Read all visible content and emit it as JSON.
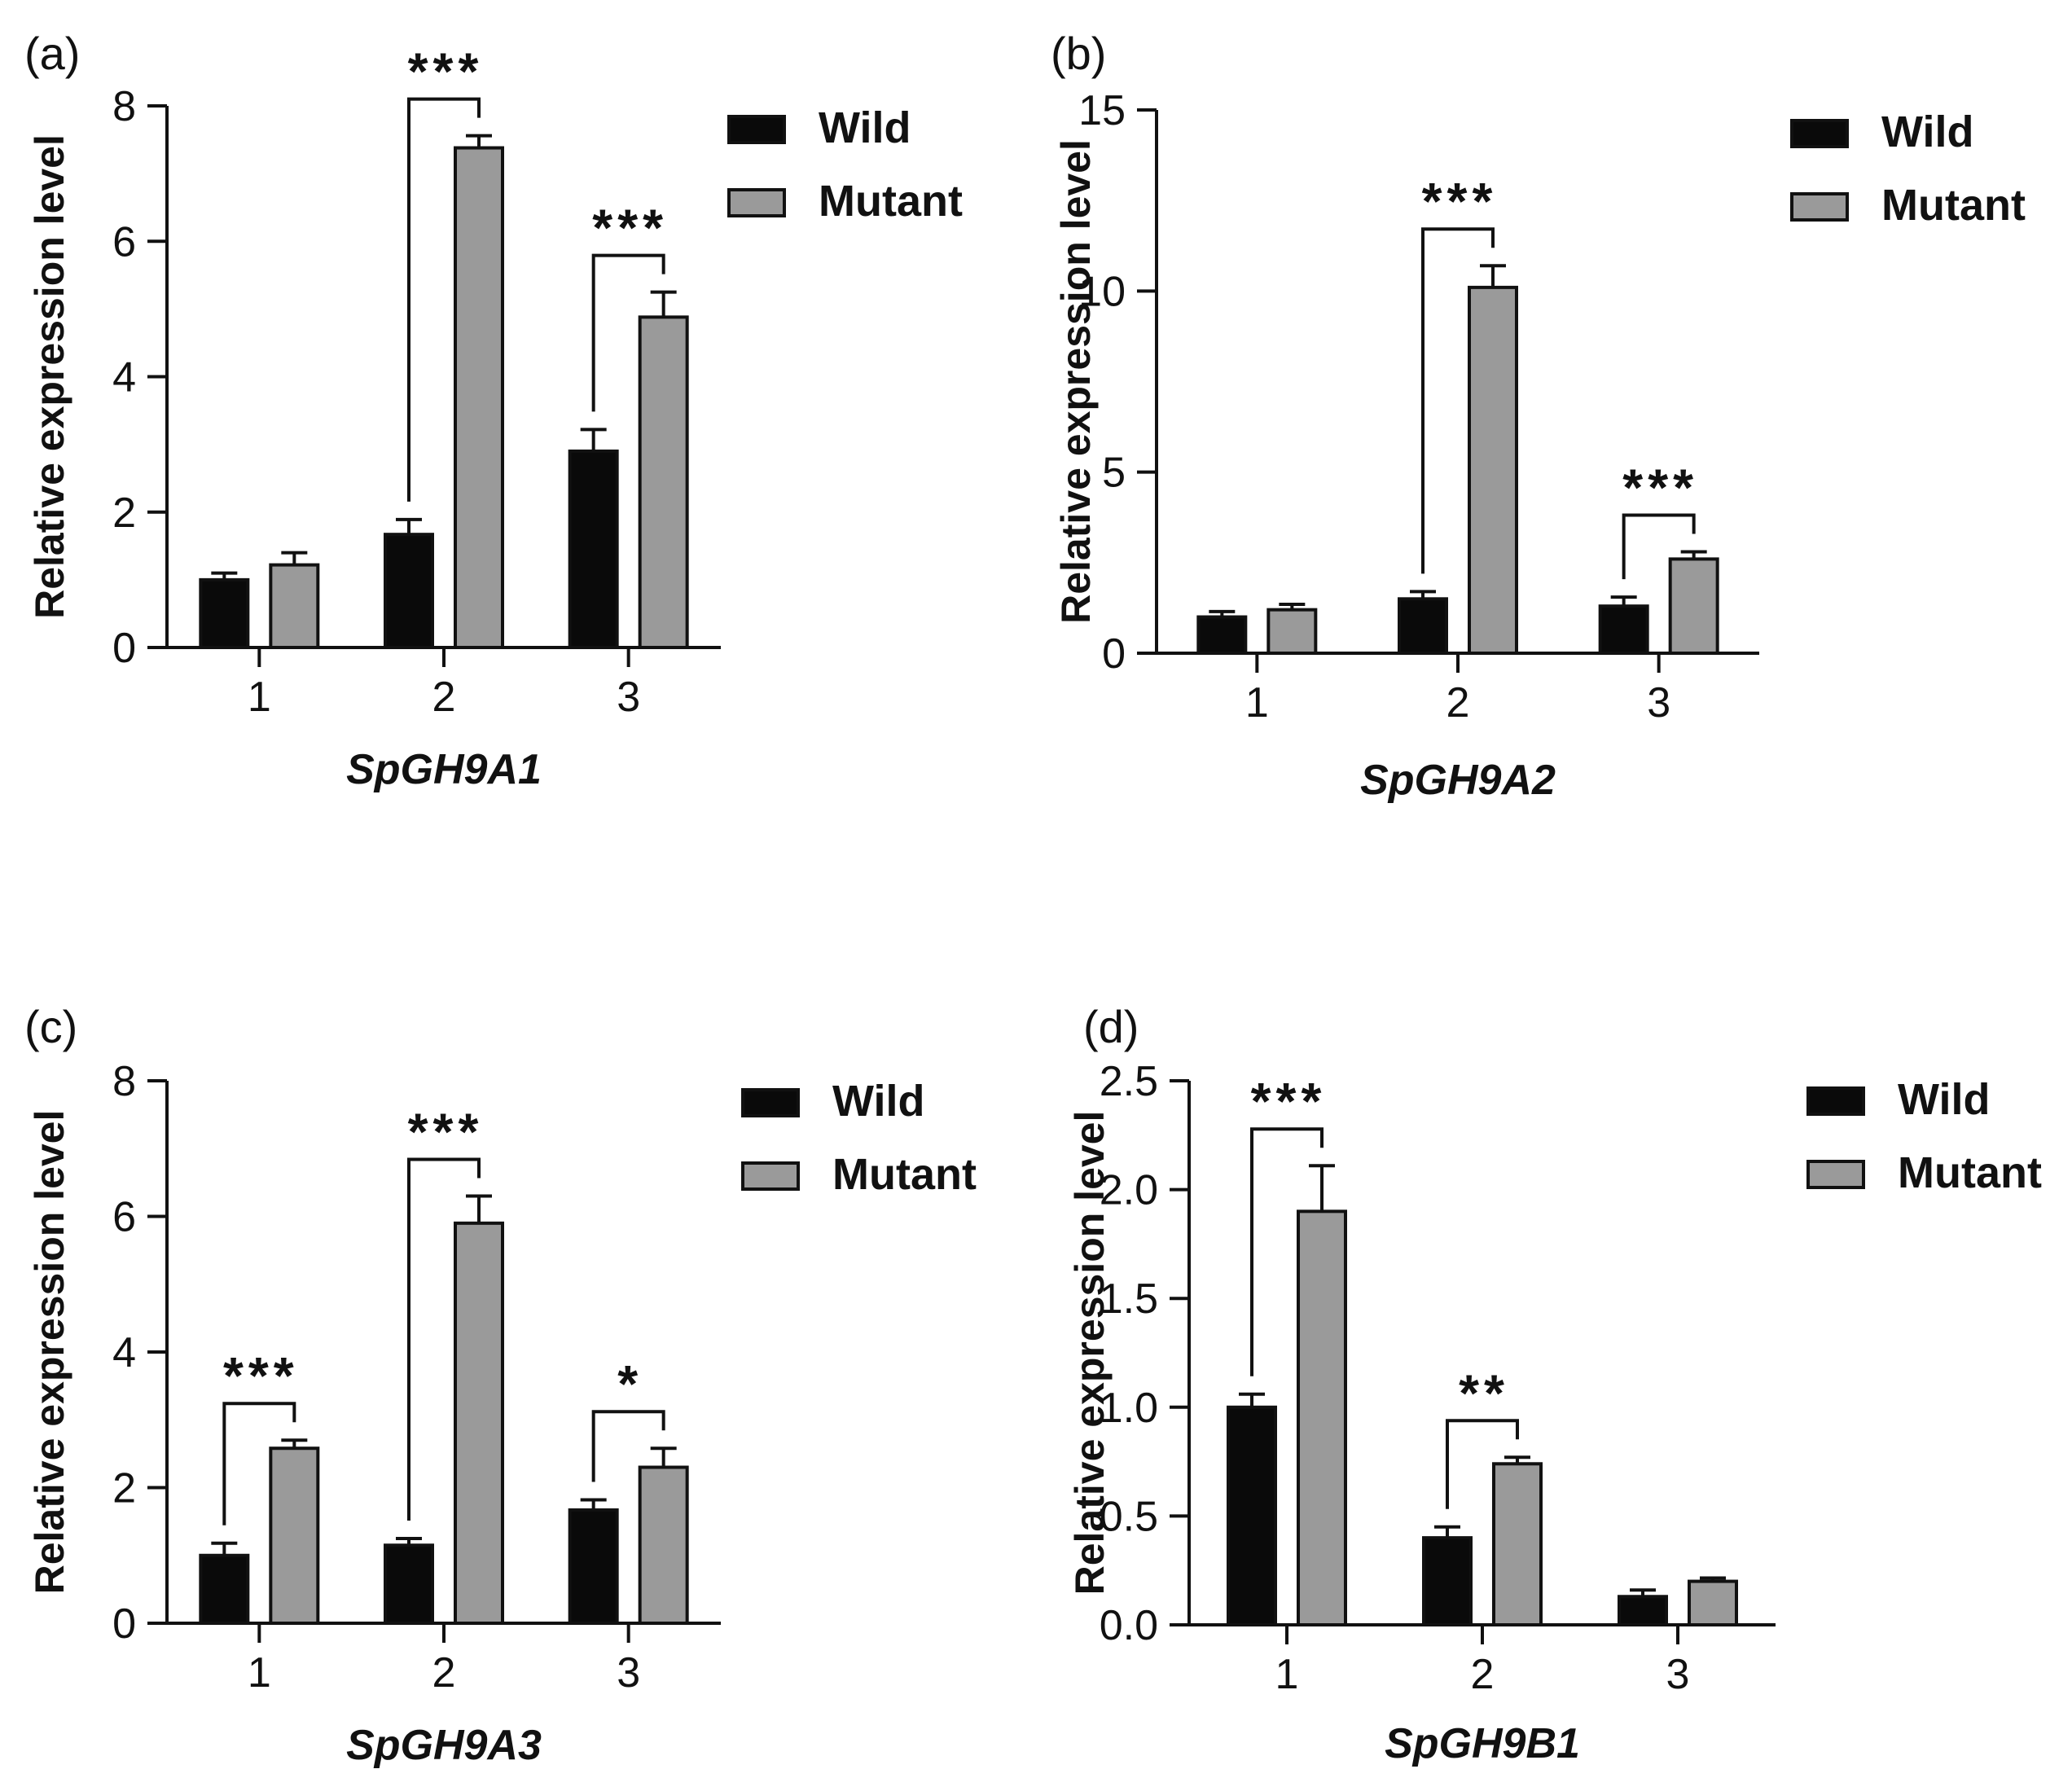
{
  "chart_data": [
    {
      "type": "bar",
      "panel": "(a)",
      "xlabel": "SpGH9A1",
      "ylabel": "Relative expression level",
      "categories": [
        "1",
        "2",
        "3"
      ],
      "ylim": [
        0,
        8
      ],
      "yticks": [
        "0",
        "2",
        "4",
        "6",
        "8"
      ],
      "series": [
        {
          "name": "Wild",
          "color": "#0a0a0a",
          "values": [
            1.0,
            1.67,
            2.9
          ],
          "errors": [
            0.1,
            0.22,
            0.32
          ]
        },
        {
          "name": "Mutant",
          "color": "#9a9a9a",
          "values": [
            1.22,
            7.38,
            4.88
          ],
          "errors": [
            0.18,
            0.18,
            0.37
          ]
        }
      ],
      "significance": [
        {
          "category": 1,
          "label": "***"
        },
        {
          "category": 2,
          "label": "***"
        }
      ]
    },
    {
      "type": "bar",
      "panel": "(b)",
      "xlabel": "SpGH9A2",
      "ylabel": "Relative expression level",
      "categories": [
        "1",
        "2",
        "3"
      ],
      "ylim": [
        0,
        15
      ],
      "yticks": [
        "0",
        "5",
        "10",
        "15"
      ],
      "series": [
        {
          "name": "Wild",
          "color": "#0a0a0a",
          "values": [
            1.0,
            1.5,
            1.3
          ],
          "errors": [
            0.15,
            0.2,
            0.25
          ]
        },
        {
          "name": "Mutant",
          "color": "#9a9a9a",
          "values": [
            1.2,
            10.1,
            2.6
          ],
          "errors": [
            0.15,
            0.6,
            0.2
          ]
        }
      ],
      "significance": [
        {
          "category": 1,
          "label": "***"
        },
        {
          "category": 2,
          "label": "***"
        }
      ]
    },
    {
      "type": "bar",
      "panel": "(c)",
      "xlabel": "SpGH9A3",
      "ylabel": "Relative expression level",
      "categories": [
        "1",
        "2",
        "3"
      ],
      "ylim": [
        0,
        8
      ],
      "yticks": [
        "0",
        "2",
        "4",
        "6",
        "8"
      ],
      "series": [
        {
          "name": "Wild",
          "color": "#0a0a0a",
          "values": [
            1.0,
            1.15,
            1.67
          ],
          "errors": [
            0.18,
            0.1,
            0.15
          ]
        },
        {
          "name": "Mutant",
          "color": "#9a9a9a",
          "values": [
            2.58,
            5.9,
            2.3
          ],
          "errors": [
            0.12,
            0.4,
            0.28
          ]
        }
      ],
      "significance": [
        {
          "category": 0,
          "label": "***"
        },
        {
          "category": 1,
          "label": "***"
        },
        {
          "category": 2,
          "label": "*"
        }
      ]
    },
    {
      "type": "bar",
      "panel": "(d)",
      "xlabel": "SpGH9B1",
      "ylabel": "Relative expression level",
      "categories": [
        "1",
        "2",
        "3"
      ],
      "ylim": [
        0,
        2.5
      ],
      "yticks": [
        "0.0",
        "0.5",
        "1.0",
        "1.5",
        "2.0",
        "2.5"
      ],
      "series": [
        {
          "name": "Wild",
          "color": "#0a0a0a",
          "values": [
            1.0,
            0.4,
            0.13
          ],
          "errors": [
            0.06,
            0.05,
            0.03
          ]
        },
        {
          "name": "Mutant",
          "color": "#9a9a9a",
          "values": [
            1.9,
            0.74,
            0.2
          ],
          "errors": [
            0.21,
            0.03,
            0.015
          ]
        }
      ],
      "significance": [
        {
          "category": 0,
          "label": "***"
        },
        {
          "category": 1,
          "label": "**"
        }
      ]
    }
  ]
}
